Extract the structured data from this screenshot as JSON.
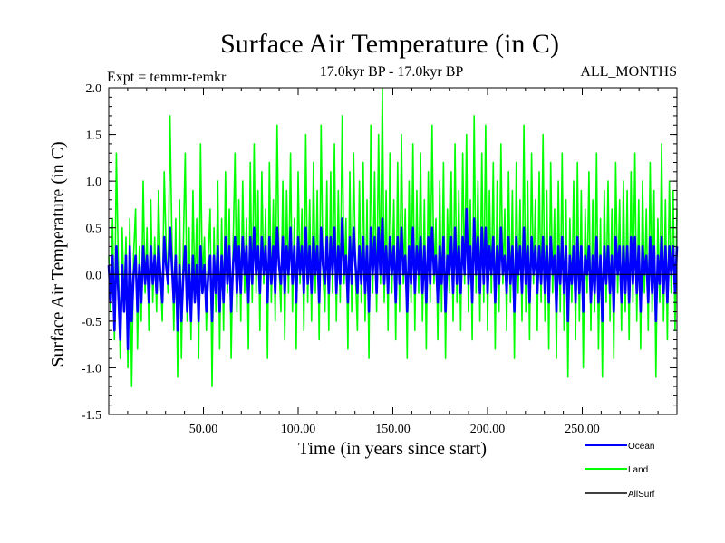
{
  "chart_data": {
    "type": "line",
    "title": "Surface Air Temperature (in C)",
    "subtitle_left": "Expt = temmr-temkr",
    "subtitle_center": "17.0kyr BP - 17.0kyr BP",
    "subtitle_right": "ALL_MONTHS",
    "xlabel": "Time (in years since start)",
    "ylabel": "Surface Air Temperature (in C)",
    "xlim": [
      0,
      300
    ],
    "ylim": [
      -1.5,
      2.0
    ],
    "x_ticks": [
      50,
      100,
      150,
      200,
      250
    ],
    "x_tick_labels": [
      "50.00",
      "100.00",
      "150.00",
      "200.00",
      "250.00"
    ],
    "y_ticks": [
      -1.5,
      -1.0,
      -0.5,
      0.0,
      0.5,
      1.0,
      1.5,
      2.0
    ],
    "y_tick_labels": [
      "-1.5",
      "-1.0",
      "-0.5",
      "0.0",
      "0.5",
      "1.0",
      "1.5",
      "2.0"
    ],
    "zero_line": 0.0,
    "series": [
      {
        "name": "Land",
        "color": "#00ff00",
        "x_step": 1,
        "values": [
          0.2,
          -0.4,
          0.6,
          -0.7,
          1.3,
          0.1,
          -0.9,
          0.5,
          -0.3,
          0.4,
          -1.0,
          0.6,
          -1.2,
          0.2,
          0.7,
          -0.8,
          0.3,
          -0.5,
          1.0,
          -0.2,
          0.5,
          -0.6,
          0.8,
          -0.3,
          0.4,
          -0.4,
          0.9,
          0.0,
          -0.5,
          1.1,
          0.3,
          -0.2,
          1.7,
          0.4,
          -0.6,
          0.6,
          -1.1,
          0.8,
          -0.9,
          0.3,
          1.3,
          -0.5,
          0.5,
          -0.7,
          0.9,
          -0.2,
          0.6,
          -0.9,
          1.4,
          -0.1,
          0.4,
          -0.6,
          0.2,
          0.7,
          -1.2,
          0.5,
          -0.4,
          1.0,
          -0.8,
          0.6,
          -0.6,
          1.1,
          -0.2,
          0.7,
          -0.9,
          0.3,
          1.3,
          -0.4,
          0.8,
          -0.5,
          1.0,
          -0.2,
          0.6,
          -0.8,
          1.2,
          -0.3,
          1.4,
          -0.2,
          0.9,
          -0.6,
          1.1,
          -0.1,
          0.7,
          -0.9,
          1.2,
          -0.3,
          0.8,
          -0.5,
          1.6,
          0.1,
          -0.4,
          1.0,
          -0.7,
          0.9,
          -0.2,
          1.3,
          -0.4,
          0.6,
          -0.8,
          1.1,
          -0.1,
          0.7,
          -0.6,
          1.5,
          -0.3,
          0.8,
          -0.5,
          1.2,
          -0.2,
          0.9,
          -0.7,
          1.6,
          0.0,
          -0.4,
          1.0,
          -0.6,
          1.1,
          -0.2,
          1.4,
          -0.5,
          0.9,
          -0.3,
          1.7,
          -0.1,
          0.6,
          -0.8,
          1.1,
          -0.4,
          1.3,
          0.0,
          -0.6,
          1.0,
          -0.3,
          1.2,
          -0.5,
          0.8,
          -0.9,
          1.6,
          -0.2,
          1.1,
          -0.4,
          1.5,
          -0.1,
          2.0,
          -0.3,
          0.9,
          -0.6,
          1.3,
          -0.2,
          0.8,
          -0.7,
          1.2,
          -0.4,
          1.5,
          -0.1,
          0.7,
          -0.9,
          1.0,
          -0.3,
          1.4,
          -0.6,
          0.9,
          -0.2,
          1.3,
          -0.5,
          0.8,
          -0.8,
          1.1,
          -0.3,
          1.6,
          -0.1,
          0.6,
          -0.7,
          1.0,
          -0.4,
          1.2,
          -0.9,
          0.7,
          -0.2,
          1.1,
          -0.5,
          1.4,
          -0.3,
          0.9,
          -0.6,
          1.3,
          -0.1,
          1.5,
          -0.4,
          0.8,
          -0.7,
          1.7,
          -0.2,
          1.0,
          -0.5,
          1.3,
          -0.3,
          1.6,
          -0.6,
          0.9,
          -0.2,
          1.2,
          -0.8,
          1.0,
          -0.4,
          1.4,
          -0.1,
          0.7,
          -0.6,
          1.1,
          -0.3,
          0.9,
          -0.9,
          1.2,
          -0.2,
          0.8,
          -0.5,
          1.6,
          -0.4,
          1.0,
          -0.7,
          1.3,
          -0.1,
          0.8,
          -0.6,
          1.1,
          -0.3,
          1.5,
          -0.5,
          0.9,
          -0.8,
          1.2,
          -0.2,
          0.7,
          -0.9,
          1.0,
          -0.4,
          1.3,
          -0.6,
          0.8,
          -1.1,
          0.6,
          -0.3,
          1.0,
          -0.7,
          1.2,
          -0.5,
          0.9,
          -1.0,
          0.7,
          -0.2,
          1.1,
          -0.6,
          0.8,
          -0.4,
          1.3,
          -0.8,
          0.6,
          -1.1,
          0.9,
          -0.3,
          1.0,
          -0.5,
          0.7,
          -0.9,
          1.2,
          -0.2,
          0.8,
          -0.6,
          1.0,
          -0.4,
          0.9,
          -0.7,
          1.1,
          -0.3,
          1.3,
          -0.5,
          0.8,
          -0.8,
          1.0,
          -0.2,
          0.7,
          -0.6,
          1.2,
          -0.4,
          0.9,
          -1.1,
          0.6,
          -0.3,
          1.4,
          -0.5,
          0.8,
          -0.7,
          1.0,
          -0.2,
          0.9,
          -0.6,
          0.7
        ]
      },
      {
        "name": "Ocean",
        "color": "#0000ff",
        "x_step": 1,
        "values": [
          0.1,
          -0.3,
          0.2,
          -0.6,
          0.3,
          -0.2,
          -0.7,
          0.1,
          -0.4,
          0.2,
          -0.8,
          0.3,
          -0.5,
          0.0,
          0.2,
          -0.4,
          0.1,
          -0.3,
          0.3,
          -0.1,
          0.2,
          -0.3,
          0.3,
          -0.1,
          0.2,
          -0.2,
          0.3,
          0.0,
          -0.3,
          0.4,
          0.1,
          -0.1,
          0.5,
          0.1,
          -0.3,
          0.2,
          -0.6,
          0.1,
          -0.5,
          0.0,
          0.3,
          -0.4,
          0.1,
          -0.5,
          0.2,
          -0.3,
          0.1,
          -0.5,
          0.3,
          -0.2,
          0.1,
          -0.4,
          0.0,
          0.2,
          -0.5,
          0.2,
          -0.2,
          0.3,
          -0.4,
          0.2,
          -0.3,
          0.4,
          -0.1,
          0.3,
          -0.4,
          0.1,
          0.4,
          -0.2,
          0.3,
          -0.2,
          0.4,
          0.0,
          0.3,
          -0.3,
          0.4,
          -0.1,
          0.5,
          0.0,
          0.3,
          -0.2,
          0.4,
          0.0,
          0.3,
          -0.3,
          0.4,
          -0.1,
          0.3,
          -0.2,
          0.5,
          0.1,
          -0.1,
          0.4,
          -0.2,
          0.3,
          0.0,
          0.5,
          -0.1,
          0.3,
          -0.3,
          0.4,
          0.0,
          0.3,
          -0.2,
          0.5,
          -0.1,
          0.3,
          -0.2,
          0.4,
          0.0,
          0.3,
          -0.3,
          0.5,
          0.1,
          -0.1,
          0.4,
          -0.2,
          0.4,
          0.0,
          0.5,
          -0.2,
          0.3,
          -0.1,
          0.6,
          0.0,
          0.2,
          -0.3,
          0.4,
          -0.1,
          0.5,
          0.1,
          -0.2,
          0.3,
          -0.1,
          0.4,
          -0.2,
          0.3,
          -0.4,
          0.5,
          0.0,
          0.4,
          -0.2,
          0.5,
          0.0,
          0.6,
          -0.1,
          0.3,
          -0.2,
          0.4,
          0.0,
          0.3,
          -0.3,
          0.4,
          -0.1,
          0.5,
          0.0,
          0.2,
          -0.4,
          0.3,
          -0.1,
          0.5,
          -0.2,
          0.3,
          0.0,
          0.4,
          -0.2,
          0.3,
          -0.3,
          0.4,
          -0.1,
          0.5,
          0.0,
          0.2,
          -0.3,
          0.3,
          -0.1,
          0.4,
          -0.4,
          0.2,
          0.0,
          0.4,
          -0.2,
          0.5,
          -0.1,
          0.3,
          -0.2,
          0.4,
          0.0,
          0.7,
          -0.1,
          0.3,
          -0.3,
          0.6,
          0.0,
          0.4,
          -0.2,
          0.5,
          -0.1,
          0.5,
          -0.2,
          0.3,
          0.0,
          0.4,
          -0.3,
          0.3,
          -0.1,
          0.5,
          0.0,
          0.2,
          -0.2,
          0.4,
          -0.1,
          0.3,
          -0.4,
          0.4,
          0.0,
          0.3,
          -0.2,
          0.5,
          -0.1,
          0.3,
          -0.3,
          0.4,
          0.0,
          0.3,
          -0.2,
          0.3,
          -0.1,
          0.4,
          -0.2,
          0.3,
          -0.3,
          0.4,
          0.0,
          0.2,
          -0.4,
          0.3,
          -0.1,
          0.4,
          -0.2,
          0.3,
          -0.5,
          0.2,
          -0.1,
          0.3,
          -0.3,
          0.4,
          -0.2,
          0.3,
          -0.4,
          0.2,
          0.0,
          0.3,
          -0.3,
          0.2,
          -0.2,
          0.4,
          -0.3,
          0.2,
          -0.5,
          0.3,
          -0.1,
          0.3,
          -0.2,
          0.2,
          -0.4,
          0.4,
          0.0,
          0.3,
          -0.3,
          0.3,
          -0.2,
          0.3,
          -0.3,
          0.4,
          -0.1,
          0.4,
          -0.2,
          0.3,
          -0.4,
          0.3,
          0.0,
          0.2,
          -0.3,
          0.4,
          -0.2,
          0.3,
          -0.5,
          0.2,
          -0.1,
          0.4,
          -0.2,
          0.3,
          -0.3,
          0.3,
          0.0,
          0.3,
          -0.2,
          0.3
        ]
      },
      {
        "name": "AllSurf",
        "color": "#000000",
        "x_step": 1,
        "values": [
          0.0,
          0.0
        ]
      }
    ],
    "legend": [
      {
        "label": "Ocean",
        "color": "#0000ff"
      },
      {
        "label": "Land",
        "color": "#00ff00"
      },
      {
        "label": "AllSurf",
        "color": "#000000"
      }
    ],
    "legend_position": "bottom-right"
  }
}
